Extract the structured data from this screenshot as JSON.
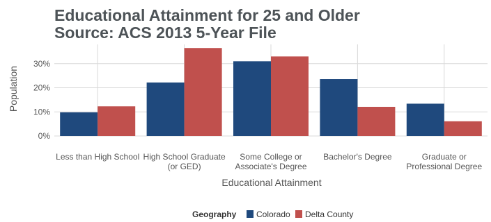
{
  "chart_data": {
    "type": "bar",
    "title": "Educational Attainment for 25 and Older",
    "subtitle": "Source: ACS 2013 5-Year File",
    "xlabel": "Educational Attainment",
    "ylabel": "Population",
    "categories": [
      "Less than High School",
      "High School Graduate\n(or GED)",
      "Some College or\nAssociate's Degree",
      "Bachelor's Degree",
      "Graduate or\nProfessional Degree"
    ],
    "series": [
      {
        "name": "Colorado",
        "color": "#1f497d",
        "values": [
          9.8,
          22.2,
          31.0,
          23.6,
          13.4
        ]
      },
      {
        "name": "Delta County",
        "color": "#c0504d",
        "values": [
          12.3,
          36.5,
          33.0,
          12.1,
          6.1
        ]
      }
    ],
    "ylim": [
      0,
      38
    ],
    "yticks": [
      0,
      10,
      20,
      30
    ],
    "ytick_format": "percent",
    "grid": true,
    "legend": {
      "title": "Geography",
      "placement": "bottom"
    }
  }
}
